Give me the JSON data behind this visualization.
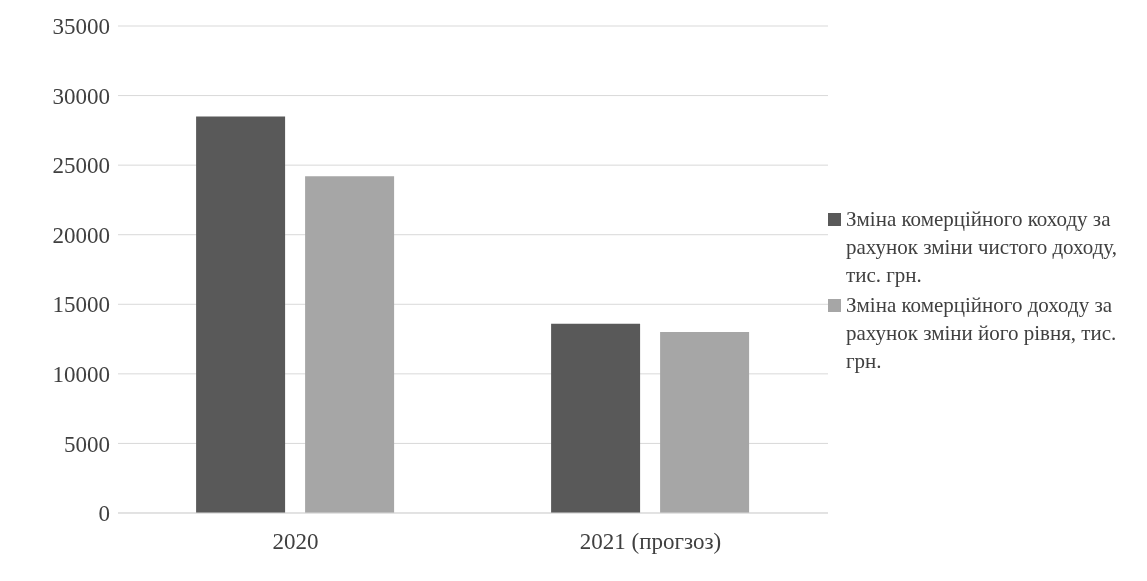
{
  "chart_data": {
    "type": "bar",
    "categories": [
      "2020",
      "2021 (прогзоз)"
    ],
    "series": [
      {
        "name": "Зміна комерційного коходу за рахунок зміни чистого доходу, тис. грн.",
        "color": "#595959",
        "values": [
          28500,
          13600
        ]
      },
      {
        "name": "Зміна комерційного доходу за рахунок зміни його рівня, тис. грн.",
        "color": "#a6a6a6",
        "values": [
          24200,
          13000
        ]
      }
    ],
    "ylim": [
      0,
      35000
    ],
    "yticks": [
      0,
      5000,
      10000,
      15000,
      20000,
      25000,
      30000,
      35000
    ],
    "grid": "y",
    "legend": "right"
  }
}
